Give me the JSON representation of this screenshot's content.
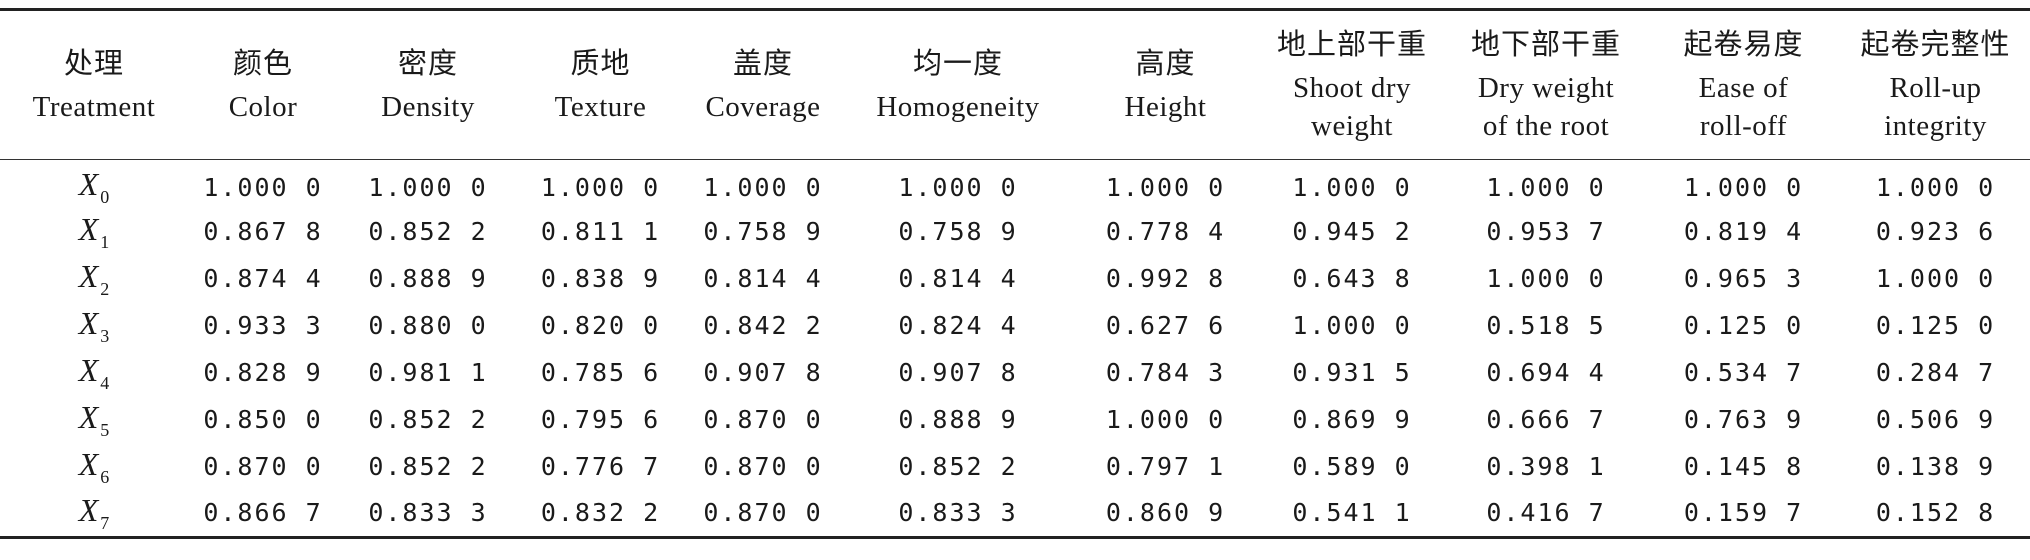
{
  "table": {
    "columns": [
      {
        "zh": "处理",
        "en_lines": [
          "Treatment"
        ]
      },
      {
        "zh": "颜色",
        "en_lines": [
          "Color"
        ]
      },
      {
        "zh": "密度",
        "en_lines": [
          "Density"
        ]
      },
      {
        "zh": "质地",
        "en_lines": [
          "Texture"
        ]
      },
      {
        "zh": "盖度",
        "en_lines": [
          "Coverage"
        ]
      },
      {
        "zh": "均一度",
        "en_lines": [
          "Homogeneity"
        ]
      },
      {
        "zh": "高度",
        "en_lines": [
          "Height"
        ]
      },
      {
        "zh": "地上部干重",
        "en_lines": [
          "Shoot dry",
          "weight"
        ]
      },
      {
        "zh": "地下部干重",
        "en_lines": [
          "Dry weight",
          "of the root"
        ]
      },
      {
        "zh": "起卷易度",
        "en_lines": [
          "Ease of",
          "roll-off"
        ]
      },
      {
        "zh": "起卷完整性",
        "en_lines": [
          "Roll-up",
          "integrity"
        ]
      }
    ],
    "rows": [
      {
        "treatment": "X",
        "sub": "0",
        "values": [
          "1.000 0",
          "1.000 0",
          "1.000 0",
          "1.000 0",
          "1.000 0",
          "1.000 0",
          "1.000 0",
          "1.000 0",
          "1.000 0",
          "1.000 0"
        ]
      },
      {
        "treatment": "X",
        "sub": "1",
        "values": [
          "0.867 8",
          "0.852 2",
          "0.811 1",
          "0.758 9",
          "0.758 9",
          "0.778 4",
          "0.945 2",
          "0.953 7",
          "0.819 4",
          "0.923 6"
        ]
      },
      {
        "treatment": "X",
        "sub": "2",
        "values": [
          "0.874 4",
          "0.888 9",
          "0.838 9",
          "0.814 4",
          "0.814 4",
          "0.992 8",
          "0.643 8",
          "1.000 0",
          "0.965 3",
          "1.000 0"
        ]
      },
      {
        "treatment": "X",
        "sub": "3",
        "values": [
          "0.933 3",
          "0.880 0",
          "0.820 0",
          "0.842 2",
          "0.824 4",
          "0.627 6",
          "1.000 0",
          "0.518 5",
          "0.125 0",
          "0.125 0"
        ]
      },
      {
        "treatment": "X",
        "sub": "4",
        "values": [
          "0.828 9",
          "0.981 1",
          "0.785 6",
          "0.907 8",
          "0.907 8",
          "0.784 3",
          "0.931 5",
          "0.694 4",
          "0.534 7",
          "0.284 7"
        ]
      },
      {
        "treatment": "X",
        "sub": "5",
        "values": [
          "0.850 0",
          "0.852 2",
          "0.795 6",
          "0.870 0",
          "0.888 9",
          "1.000 0",
          "0.869 9",
          "0.666 7",
          "0.763 9",
          "0.506 9"
        ]
      },
      {
        "treatment": "X",
        "sub": "6",
        "values": [
          "0.870 0",
          "0.852 2",
          "0.776 7",
          "0.870 0",
          "0.852 2",
          "0.797 1",
          "0.589 0",
          "0.398 1",
          "0.145 8",
          "0.138 9"
        ]
      },
      {
        "treatment": "X",
        "sub": "7",
        "values": [
          "0.866 7",
          "0.833 3",
          "0.832 2",
          "0.870 0",
          "0.833 3",
          "0.860 9",
          "0.541 1",
          "0.416 7",
          "0.159 7",
          "0.152 8"
        ]
      }
    ]
  }
}
